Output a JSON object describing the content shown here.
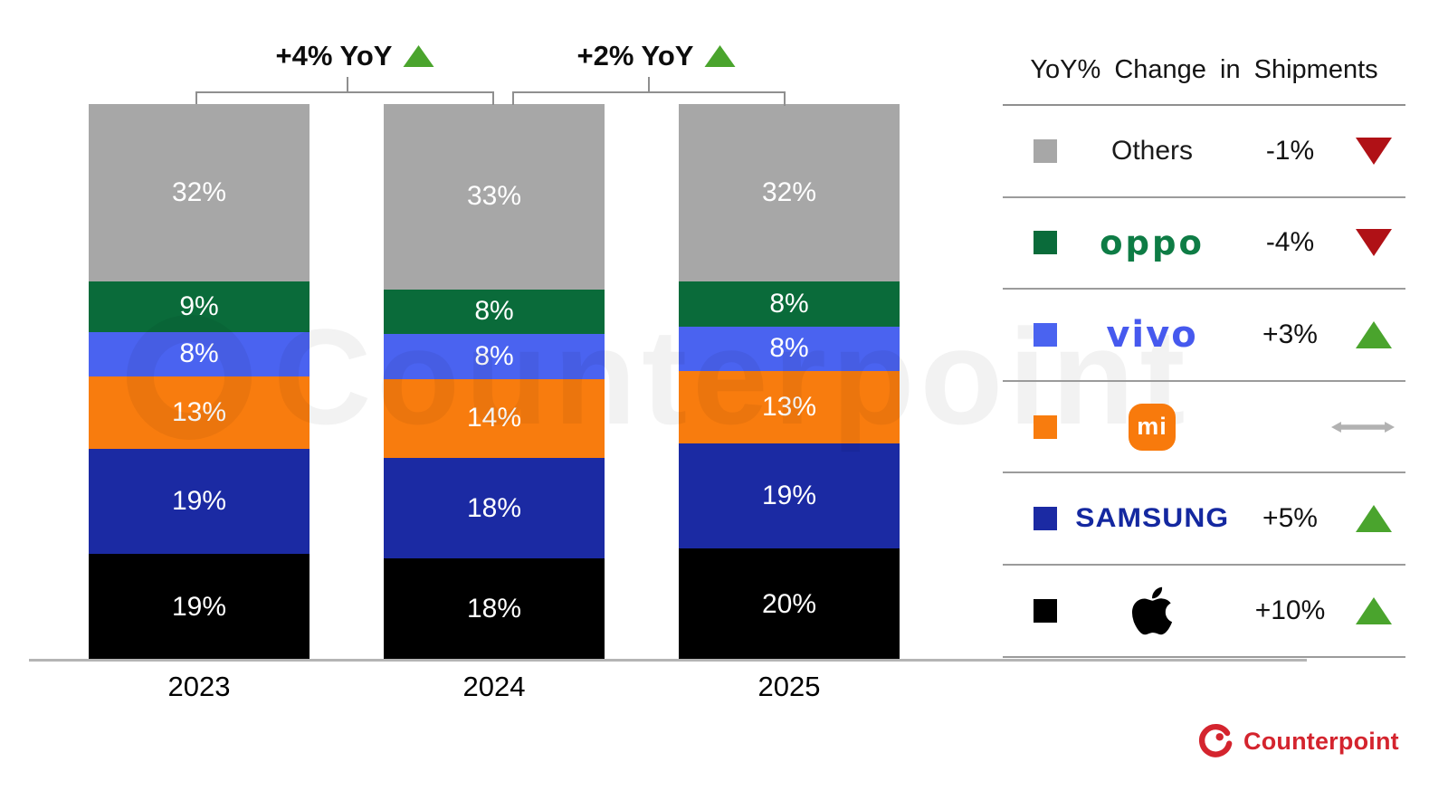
{
  "watermark": {
    "text": "Counterpoint"
  },
  "chart_data": {
    "type": "bar",
    "stacked": true,
    "categories": [
      "2023",
      "2024",
      "2025"
    ],
    "series": [
      {
        "name": "Apple",
        "color": "#000000",
        "values": [
          19,
          18,
          20
        ]
      },
      {
        "name": "Samsung",
        "color": "#1b2aa3",
        "values": [
          19,
          18,
          19
        ]
      },
      {
        "name": "Xiaomi",
        "color": "#f87c0e",
        "values": [
          13,
          14,
          13
        ]
      },
      {
        "name": "vivo",
        "color": "#4a63f0",
        "values": [
          8,
          8,
          8
        ]
      },
      {
        "name": "OPPO",
        "color": "#0a6b3a",
        "values": [
          9,
          8,
          8
        ]
      },
      {
        "name": "Others",
        "color": "#a7a7a7",
        "values": [
          32,
          33,
          32
        ]
      }
    ],
    "value_suffix": "%",
    "ylim": [
      0,
      100
    ],
    "grid": false,
    "legend_position": "right",
    "annotations": [
      {
        "label": "+4% YoY",
        "direction": "up",
        "between": [
          "2023",
          "2024"
        ]
      },
      {
        "label": "+2% YoY",
        "direction": "up",
        "between": [
          "2024",
          "2025"
        ]
      }
    ]
  },
  "legend": {
    "title": "YoY% Change in Shipments",
    "rows": [
      {
        "brand": "Others",
        "wordmark": "Others",
        "value": "-1%",
        "direction": "down"
      },
      {
        "brand": "OPPO",
        "wordmark": "oppo",
        "value": "-4%",
        "direction": "down"
      },
      {
        "brand": "vivo",
        "wordmark": "vivo",
        "value": "+3%",
        "direction": "up"
      },
      {
        "brand": "Xiaomi",
        "wordmark": "mi",
        "value": "",
        "direction": "flat"
      },
      {
        "brand": "Samsung",
        "wordmark": "SAMSUNG",
        "value": "+5%",
        "direction": "up"
      },
      {
        "brand": "Apple",
        "wordmark": "",
        "value": "+10%",
        "direction": "up"
      }
    ]
  },
  "colors": {
    "up": "#4aa42d",
    "down": "#b01116",
    "flat_arrow": "#b2b2b2",
    "accent_red": "#d4242e",
    "axis": "#b4b4b4"
  },
  "footer": {
    "brand": "Counterpoint"
  }
}
